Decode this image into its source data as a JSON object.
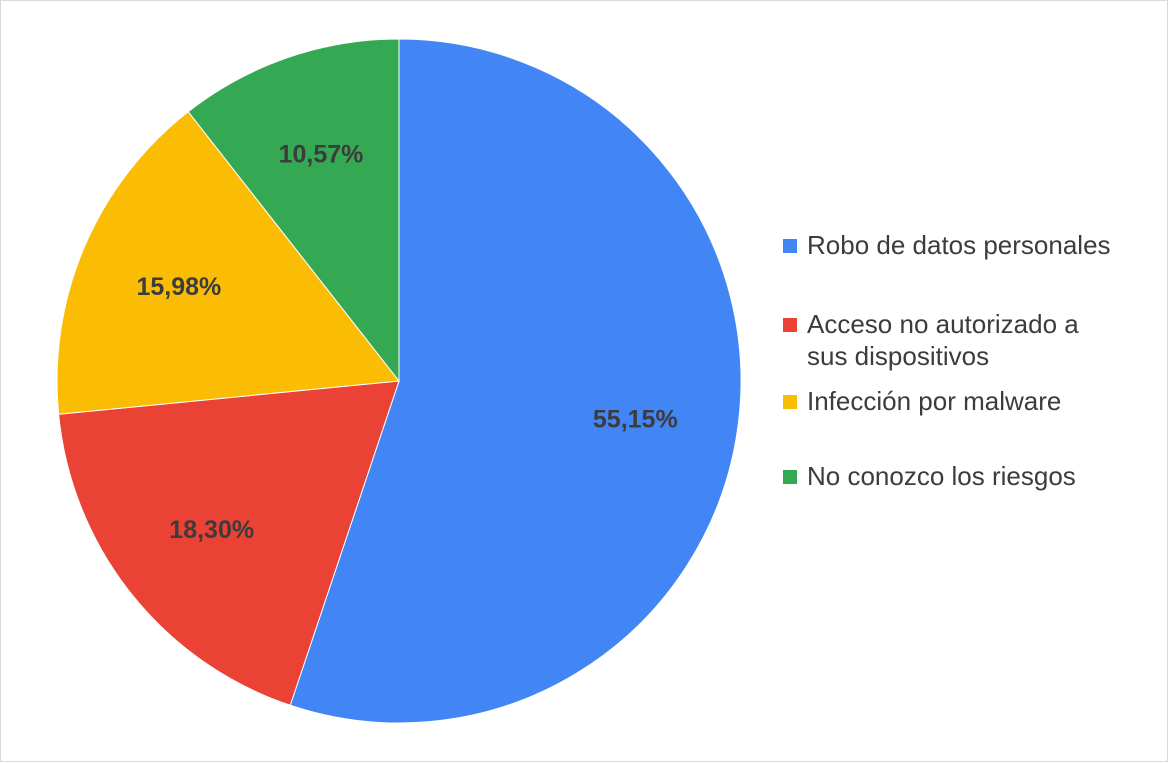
{
  "chart_data": {
    "type": "pie",
    "categories": [
      "Robo de datos personales",
      "Acceso no autorizado a sus dispositivos",
      "Infección por malware",
      "No conozco los riesgos"
    ],
    "values": [
      55.15,
      18.3,
      15.98,
      10.57
    ],
    "data_labels": [
      "55,15%",
      "18,30%",
      "15,98%",
      "10,57%"
    ],
    "colors": [
      "#4285f4",
      "#ea4335",
      "#fbbc04",
      "#34a853"
    ],
    "legend_placement": "right",
    "title": ""
  },
  "legend": {
    "items": [
      {
        "label_lines": [
          "Robo de datos personales"
        ],
        "color": "#4285f4"
      },
      {
        "label_lines": [
          "Acceso no autorizado a",
          "sus dispositivos"
        ],
        "color": "#ea4335"
      },
      {
        "label_lines": [
          "Infección por malware"
        ],
        "color": "#fbbc04"
      },
      {
        "label_lines": [
          "No conozco los riesgos"
        ],
        "color": "#34a853"
      }
    ]
  }
}
